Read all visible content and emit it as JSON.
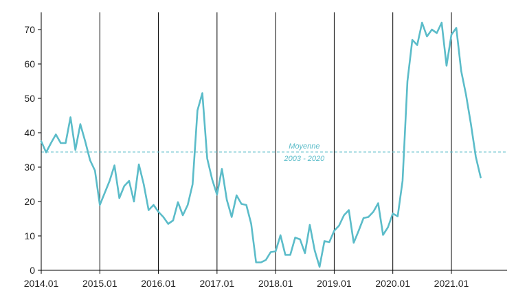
{
  "chart_data": {
    "type": "line",
    "title": "",
    "xlabel": "",
    "ylabel": "",
    "ylim": [
      0,
      75
    ],
    "yticks": [
      0,
      10,
      20,
      30,
      40,
      50,
      60,
      70
    ],
    "xlim": [
      2014.0,
      2021.95
    ],
    "xticks": [
      {
        "value": 2014.0,
        "label": "2014.01"
      },
      {
        "value": 2015.0,
        "label": "2015.01"
      },
      {
        "value": 2016.0,
        "label": "2016.01"
      },
      {
        "value": 2017.0,
        "label": "2017.01"
      },
      {
        "value": 2018.0,
        "label": "2018.01"
      },
      {
        "value": 2019.0,
        "label": "2019.01"
      },
      {
        "value": 2020.0,
        "label": "2020.01"
      },
      {
        "value": 2021.0,
        "label": "2021.01"
      }
    ],
    "grid": "vertical lines at year starts",
    "legend": "none",
    "colors": {
      "series": "#5bbcc9",
      "gridline": "#000000",
      "axis": "#000000"
    },
    "series": [
      {
        "x": [
          2014.0,
          2014.0833,
          2014.1667,
          2014.25,
          2014.3333,
          2014.4167,
          2014.5,
          2014.5833,
          2014.6667,
          2014.75,
          2014.8333,
          2014.9167,
          2015.0,
          2015.0833,
          2015.1667,
          2015.25,
          2015.3333,
          2015.4167,
          2015.5,
          2015.5833,
          2015.6667,
          2015.75,
          2015.8333,
          2015.9167,
          2016.0,
          2016.0833,
          2016.1667,
          2016.25,
          2016.3333,
          2016.4167,
          2016.5,
          2016.5833,
          2016.6667,
          2016.75,
          2016.8333,
          2016.9167,
          2017.0,
          2017.0833,
          2017.1667,
          2017.25,
          2017.3333,
          2017.4167,
          2017.5,
          2017.5833,
          2017.6667,
          2017.75,
          2017.8333,
          2017.9167,
          2018.0,
          2018.0833,
          2018.1667,
          2018.25,
          2018.3333,
          2018.4167,
          2018.5,
          2018.5833,
          2018.6667,
          2018.75,
          2018.8333,
          2018.9167,
          2019.0,
          2019.0833,
          2019.1667,
          2019.25,
          2019.3333,
          2019.4167,
          2019.5,
          2019.5833,
          2019.6667,
          2019.75,
          2019.8333,
          2019.9167,
          2020.0,
          2020.0833,
          2020.1667,
          2020.25,
          2020.3333,
          2020.4167,
          2020.5,
          2020.5833,
          2020.6667,
          2020.75,
          2020.8333,
          2020.9167,
          2021.0,
          2021.0833,
          2021.1667,
          2021.25,
          2021.3333,
          2021.4167,
          2021.5
        ],
        "values": [
          37.5,
          34.3,
          37,
          39.5,
          37,
          37,
          44.5,
          35,
          42.5,
          37.5,
          32,
          29,
          19,
          22.5,
          26,
          30.5,
          21,
          24.5,
          26,
          20,
          30.8,
          25,
          17.5,
          19,
          17,
          15.5,
          13.5,
          14.5,
          19.8,
          16,
          19,
          25,
          46.5,
          51.5,
          32.5,
          26.5,
          22,
          29.5,
          20.5,
          15.5,
          21.8,
          19.3,
          19,
          13.5,
          2.3,
          2.3,
          3,
          5.3,
          5.5,
          10.2,
          4.5,
          4.5,
          9.5,
          9,
          5,
          13.2,
          5.8,
          1,
          8.5,
          8.2,
          11.5,
          13,
          16,
          17.5,
          8,
          11.5,
          15.2,
          15.5,
          17,
          19.5,
          10.3,
          12.5,
          16.5,
          15.7,
          26,
          55,
          67,
          65.5,
          72,
          68,
          70,
          69,
          72,
          59.5,
          68.5,
          70.5,
          58,
          51,
          42.5,
          33,
          27
        ]
      }
    ],
    "reference_line": {
      "value": 34.4,
      "label_line1": "Moyenne",
      "label_line2": "2003 - 2020",
      "style": "dashed"
    }
  }
}
